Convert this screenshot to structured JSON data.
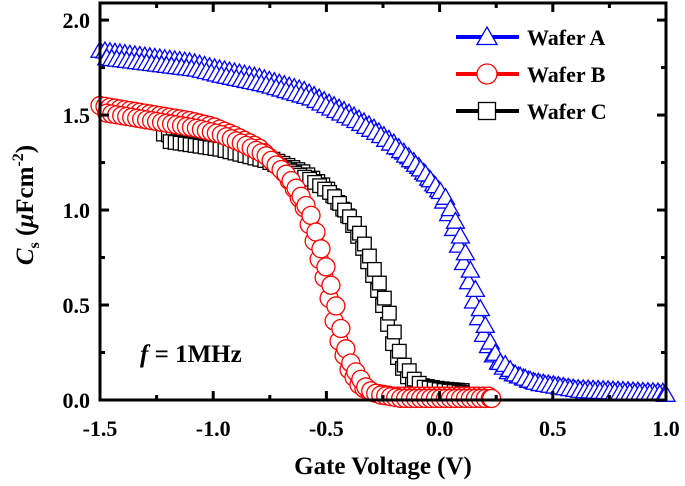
{
  "chart_data": {
    "type": "scatter",
    "xlabel": "Gate Voltage (V)",
    "ylabel": {
      "main": "C",
      "sub": "s",
      "unit_prefix": " (",
      "mu": "μ",
      "unit": "Fcm",
      "sup": "-2",
      "close": ")"
    },
    "xlim": [
      -1.5,
      1.0
    ],
    "ylim": [
      0,
      2.09
    ],
    "xticks": [
      "-1.5",
      "-1.0",
      "-0.5",
      "0.0",
      "0.5",
      "1.0"
    ],
    "xtick_values": [
      -1.5,
      -1.0,
      -0.5,
      0.0,
      0.5,
      1.0
    ],
    "yticks": [
      "0.0",
      "0.5",
      "1.0",
      "1.5",
      "2.0"
    ],
    "ytick_values": [
      0,
      0.5,
      1.0,
      1.5,
      2.0
    ],
    "grid": false,
    "legend_position": "top-right",
    "annotation": {
      "symbol": "f",
      "text": " = 1MHz"
    },
    "series": [
      {
        "name": "Wafer A",
        "color": "#0000ff",
        "marker": "triangle",
        "x": [
          -1.5,
          -1.3,
          -1.1,
          -1.0,
          -0.8,
          -0.6,
          -0.5,
          -0.4,
          -0.3,
          -0.2,
          -0.1,
          0.0,
          0.05,
          0.1,
          0.15,
          0.2,
          0.25,
          0.3,
          0.4,
          0.5,
          0.6,
          0.8,
          1.0
        ],
        "y": [
          1.84,
          1.81,
          1.78,
          1.75,
          1.7,
          1.63,
          1.57,
          1.51,
          1.44,
          1.35,
          1.24,
          1.1,
          0.95,
          0.75,
          0.52,
          0.32,
          0.21,
          0.15,
          0.1,
          0.08,
          0.06,
          0.05,
          0.04
        ]
      },
      {
        "name": "Wafer B",
        "color": "#ff0000",
        "marker": "circle",
        "x": [
          -1.5,
          -1.3,
          -1.1,
          -1.0,
          -0.9,
          -0.8,
          -0.7,
          -0.65,
          -0.6,
          -0.55,
          -0.5,
          -0.45,
          -0.4,
          -0.35,
          -0.3,
          -0.2,
          0.0,
          0.23
        ],
        "y": [
          1.55,
          1.51,
          1.47,
          1.44,
          1.39,
          1.33,
          1.22,
          1.13,
          1.02,
          0.82,
          0.6,
          0.33,
          0.16,
          0.07,
          0.04,
          0.02,
          0.02,
          0.02
        ]
      },
      {
        "name": "Wafer C",
        "color": "#000000",
        "marker": "square",
        "x": [
          -1.22,
          -1.0,
          -0.8,
          -0.6,
          -0.5,
          -0.4,
          -0.35,
          -0.3,
          -0.25,
          -0.2,
          -0.15,
          -0.1,
          0.0,
          0.1
        ],
        "y": [
          1.4,
          1.36,
          1.3,
          1.2,
          1.12,
          0.96,
          0.83,
          0.67,
          0.49,
          0.26,
          0.13,
          0.08,
          0.06,
          0.05
        ]
      }
    ]
  }
}
